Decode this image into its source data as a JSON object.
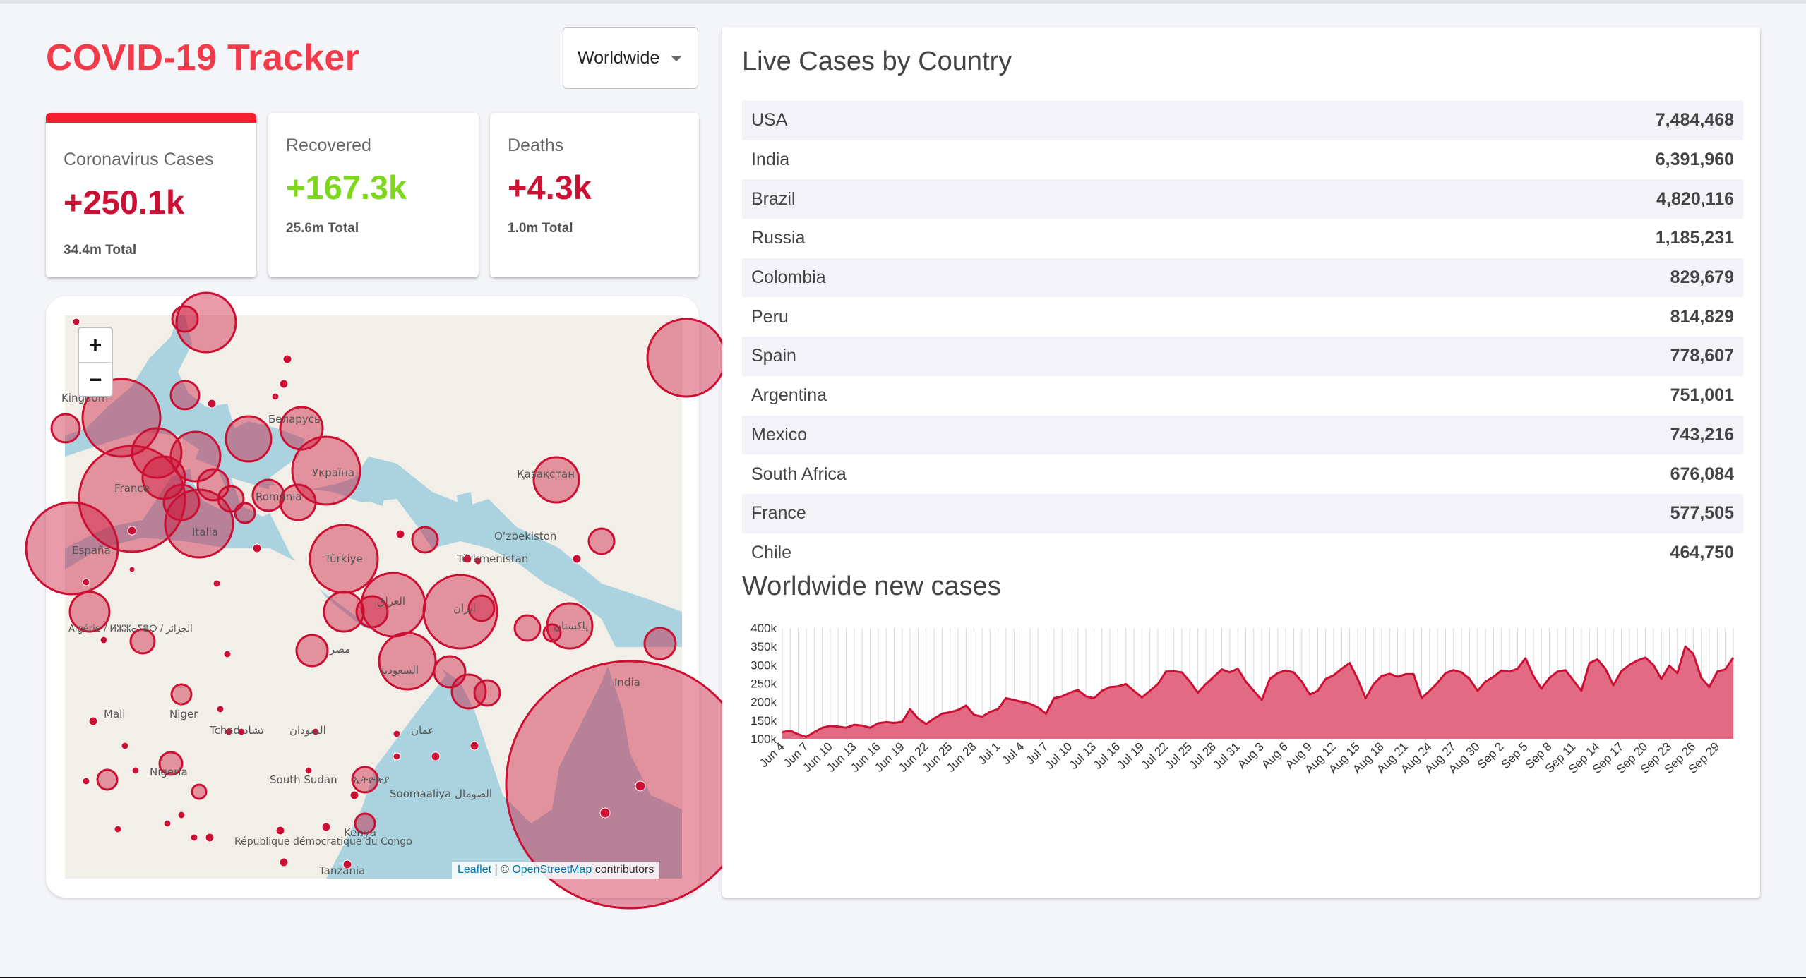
{
  "app": {
    "title": "COVID-19 Tracker",
    "country_select": "Worldwide"
  },
  "stats": {
    "cases": {
      "label": "Coronavirus Cases",
      "value": "+250.1k",
      "total": "34.4m Total",
      "color": "#cc1034"
    },
    "recovered": {
      "label": "Recovered",
      "value": "+167.3k",
      "total": "25.6m Total",
      "color": "#7dd71d"
    },
    "deaths": {
      "label": "Deaths",
      "value": "+4.3k",
      "total": "1.0m Total",
      "color": "#cc1034"
    }
  },
  "map": {
    "zoom_in": "+",
    "zoom_out": "−",
    "attribution": {
      "leaflet": "Leaflet",
      "sep": " | © ",
      "osm": "OpenStreetMap",
      "suffix": " contributors"
    },
    "labels": [
      "Kingdom",
      "Беларусь",
      "France",
      "Україна",
      "România",
      "Italia",
      "España",
      "Қазақстан",
      "Türkiye",
      "Oʻzbekiston",
      "Türkmenistan",
      "العراق",
      "ایران",
      "پاکستان",
      "Algérie / ⵍⵣⵣⴰⵢⴻⵔ / الجزائر",
      "مصر",
      "السعودية",
      "India",
      "Mali",
      "Niger",
      "Tchad تشاد",
      "السودان",
      "عمان",
      "Nigeria",
      "South Sudan",
      "ኢትዮጵያ",
      "Soomaaliya الصومال",
      "République démocratique du Congo",
      "Kenya",
      "Tanzania"
    ]
  },
  "live_cases": {
    "title": "Live Cases by Country",
    "rows": [
      {
        "country": "USA",
        "cases": "7,484,468"
      },
      {
        "country": "India",
        "cases": "6,391,960"
      },
      {
        "country": "Brazil",
        "cases": "4,820,116"
      },
      {
        "country": "Russia",
        "cases": "1,185,231"
      },
      {
        "country": "Colombia",
        "cases": "829,679"
      },
      {
        "country": "Peru",
        "cases": "814,829"
      },
      {
        "country": "Spain",
        "cases": "778,607"
      },
      {
        "country": "Argentina",
        "cases": "751,001"
      },
      {
        "country": "Mexico",
        "cases": "743,216"
      },
      {
        "country": "South Africa",
        "cases": "676,084"
      },
      {
        "country": "France",
        "cases": "577,505"
      },
      {
        "country": "Chile",
        "cases": "464,750"
      }
    ]
  },
  "chart_title": "Worldwide new cases",
  "chart_data": {
    "type": "area",
    "title": "Worldwide new cases",
    "xlabel": "",
    "ylabel": "",
    "ylim": [
      100000,
      400000
    ],
    "yticks": [
      "400k",
      "350k",
      "300k",
      "250k",
      "200k",
      "150k",
      "100k"
    ],
    "grid": "vertical",
    "legend": "none",
    "fill_color": "#e26b83",
    "line_color": "#cc1034",
    "x": [
      "Jun 4",
      "Jun 5",
      "Jun 6",
      "Jun 7",
      "Jun 8",
      "Jun 9",
      "Jun 10",
      "Jun 11",
      "Jun 12",
      "Jun 13",
      "Jun 14",
      "Jun 15",
      "Jun 16",
      "Jun 17",
      "Jun 18",
      "Jun 19",
      "Jun 20",
      "Jun 21",
      "Jun 22",
      "Jun 23",
      "Jun 24",
      "Jun 25",
      "Jun 26",
      "Jun 27",
      "Jun 28",
      "Jun 29",
      "Jun 30",
      "Jul 1",
      "Jul 2",
      "Jul 3",
      "Jul 4",
      "Jul 5",
      "Jul 6",
      "Jul 7",
      "Jul 8",
      "Jul 9",
      "Jul 10",
      "Jul 11",
      "Jul 12",
      "Jul 13",
      "Jul 14",
      "Jul 15",
      "Jul 16",
      "Jul 17",
      "Jul 18",
      "Jul 19",
      "Jul 20",
      "Jul 21",
      "Jul 22",
      "Jul 23",
      "Jul 24",
      "Jul 25",
      "Jul 26",
      "Jul 27",
      "Jul 28",
      "Jul 29",
      "Jul 30",
      "Jul 31",
      "Aug 1",
      "Aug 2",
      "Aug 3",
      "Aug 4",
      "Aug 5",
      "Aug 6",
      "Aug 7",
      "Aug 8",
      "Aug 9",
      "Aug 10",
      "Aug 11",
      "Aug 12",
      "Aug 13",
      "Aug 14",
      "Aug 15",
      "Aug 16",
      "Aug 17",
      "Aug 18",
      "Aug 19",
      "Aug 20",
      "Aug 21",
      "Aug 22",
      "Aug 23",
      "Aug 24",
      "Aug 25",
      "Aug 26",
      "Aug 27",
      "Aug 28",
      "Aug 29",
      "Aug 30",
      "Aug 31",
      "Sep 1",
      "Sep 2",
      "Sep 3",
      "Sep 4",
      "Sep 5",
      "Sep 6",
      "Sep 7",
      "Sep 8",
      "Sep 9",
      "Sep 10",
      "Sep 11",
      "Sep 12",
      "Sep 13",
      "Sep 14",
      "Sep 15",
      "Sep 16",
      "Sep 17",
      "Sep 18",
      "Sep 19",
      "Sep 20",
      "Sep 21",
      "Sep 22",
      "Sep 23",
      "Sep 24",
      "Sep 25",
      "Sep 26",
      "Sep 27",
      "Sep 28",
      "Sep 29",
      "Sep 30",
      "Oct 1"
    ],
    "xtick_labels": [
      "Jun 4",
      "Jun 7",
      "Jun 10",
      "Jun 13",
      "Jun 16",
      "Jun 19",
      "Jun 22",
      "Jun 25",
      "Jun 28",
      "Jul 1",
      "Jul 4",
      "Jul 7",
      "Jul 10",
      "Jul 13",
      "Jul 16",
      "Jul 19",
      "Jul 22",
      "Jul 25",
      "Jul 28",
      "Jul 31",
      "Aug 3",
      "Aug 6",
      "Aug 9",
      "Aug 12",
      "Aug 15",
      "Aug 18",
      "Aug 21",
      "Aug 24",
      "Aug 27",
      "Aug 30",
      "Sep 2",
      "Sep 5",
      "Sep 8",
      "Sep 11",
      "Sep 14",
      "Sep 17",
      "Sep 20",
      "Sep 23",
      "Sep 26",
      "Sep 29"
    ],
    "values": [
      118000,
      122000,
      112000,
      105000,
      118000,
      130000,
      135000,
      133000,
      130000,
      138000,
      136000,
      130000,
      142000,
      145000,
      143000,
      146000,
      180000,
      155000,
      140000,
      155000,
      168000,
      172000,
      178000,
      190000,
      165000,
      160000,
      173000,
      180000,
      210000,
      205000,
      200000,
      195000,
      185000,
      168000,
      210000,
      215000,
      225000,
      232000,
      215000,
      210000,
      230000,
      240000,
      242000,
      248000,
      230000,
      212000,
      230000,
      248000,
      282000,
      283000,
      280000,
      255000,
      225000,
      248000,
      268000,
      288000,
      280000,
      290000,
      255000,
      230000,
      205000,
      262000,
      278000,
      285000,
      280000,
      255000,
      220000,
      230000,
      262000,
      272000,
      290000,
      305000,
      262000,
      210000,
      248000,
      270000,
      276000,
      268000,
      275000,
      275000,
      210000,
      230000,
      252000,
      278000,
      286000,
      280000,
      262000,
      230000,
      255000,
      268000,
      285000,
      282000,
      290000,
      318000,
      270000,
      236000,
      265000,
      282000,
      286000,
      258000,
      230000,
      305000,
      315000,
      290000,
      245000,
      283000,
      300000,
      312000,
      320000,
      300000,
      262000,
      298000,
      278000,
      350000,
      330000,
      265000,
      240000,
      282000,
      288000,
      320000
    ]
  }
}
